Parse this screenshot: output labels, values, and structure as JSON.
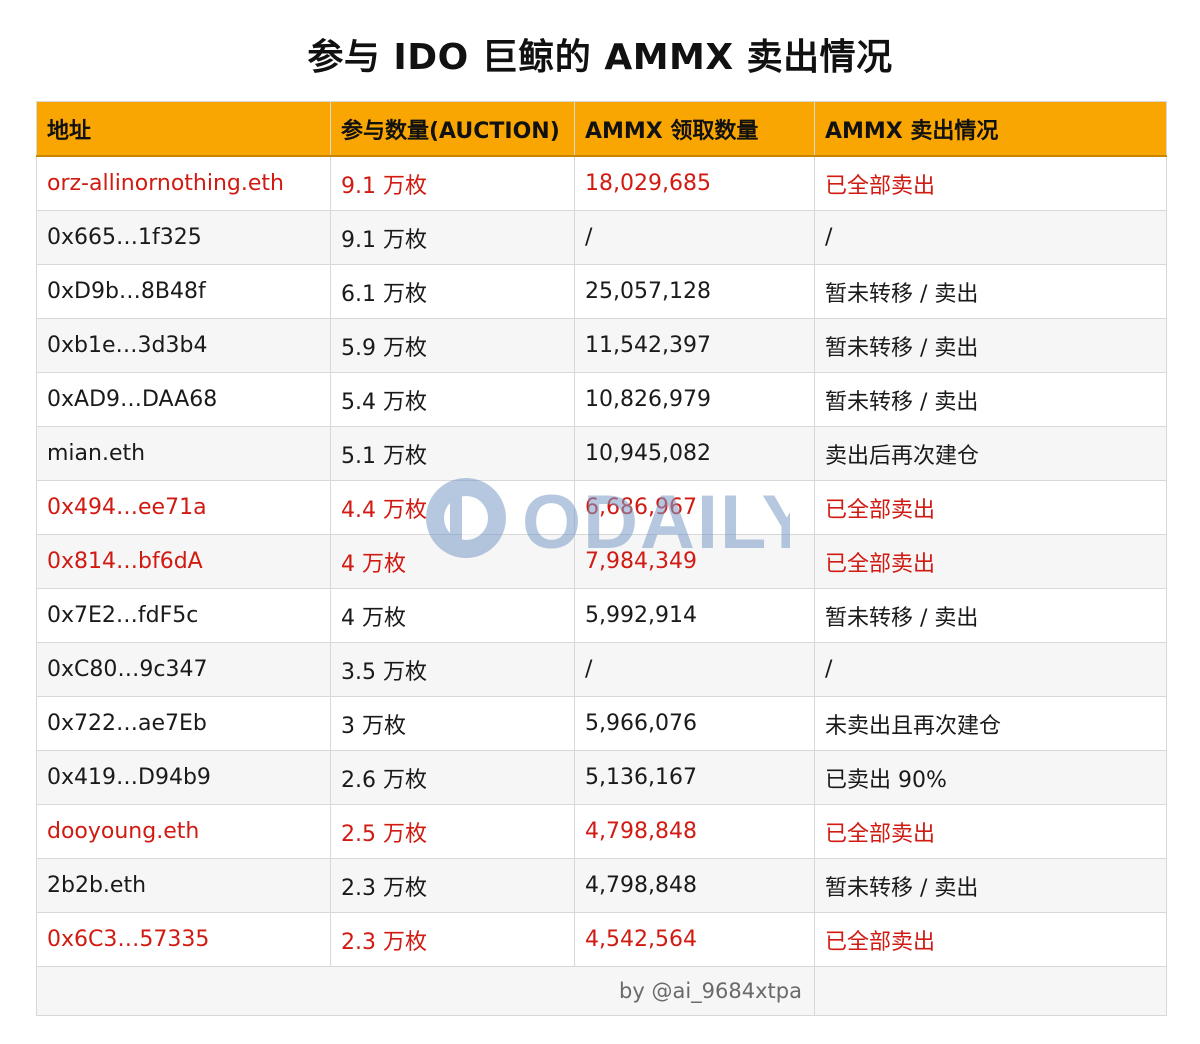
{
  "title": "参与 IDO 巨鲸的 AMMX 卖出情况",
  "headers": [
    "地址",
    "参与数量(AUCTION)",
    "AMMX 领取数量",
    "AMMX 卖出情况"
  ],
  "rows": [
    {
      "address": "orz-allinornothing.eth",
      "amount": "9.1 万枚",
      "claimed": "18,029,685",
      "status": "已全部卖出",
      "highlight": true
    },
    {
      "address": "0x665…1f325",
      "amount": "9.1 万枚",
      "claimed": "/",
      "status": "/",
      "highlight": false
    },
    {
      "address": "0xD9b…8B48f",
      "amount": "6.1 万枚",
      "claimed": "25,057,128",
      "status": "暂未转移 / 卖出",
      "highlight": false
    },
    {
      "address": "0xb1e…3d3b4",
      "amount": "5.9 万枚",
      "claimed": "11,542,397",
      "status": "暂未转移 / 卖出",
      "highlight": false
    },
    {
      "address": "0xAD9…DAA68",
      "amount": "5.4 万枚",
      "claimed": "10,826,979",
      "status": "暂未转移 / 卖出",
      "highlight": false
    },
    {
      "address": "mian.eth",
      "amount": "5.1 万枚",
      "claimed": "10,945,082",
      "status": "卖出后再次建仓",
      "highlight": false
    },
    {
      "address": "0x494…ee71a",
      "amount": "4.4 万枚",
      "claimed": "6,686,967",
      "status": "已全部卖出",
      "highlight": true
    },
    {
      "address": "0x814…bf6dA",
      "amount": "4 万枚",
      "claimed": "7,984,349",
      "status": "已全部卖出",
      "highlight": true
    },
    {
      "address": "0x7E2…fdF5c",
      "amount": "4 万枚",
      "claimed": "5,992,914",
      "status": "暂未转移 / 卖出",
      "highlight": false
    },
    {
      "address": "0xC80…9c347",
      "amount": "3.5 万枚",
      "claimed": "/",
      "status": "/",
      "highlight": false
    },
    {
      "address": "0x722…ae7Eb",
      "amount": "3 万枚",
      "claimed": "5,966,076",
      "status": "未卖出且再次建仓",
      "highlight": false
    },
    {
      "address": "0x419…D94b9",
      "amount": "2.6 万枚",
      "claimed": "5,136,167",
      "status": "已卖出 90%",
      "highlight": false
    },
    {
      "address": "dooyoung.eth",
      "amount": "2.5 万枚",
      "claimed": "4,798,848",
      "status": "已全部卖出",
      "highlight": true
    },
    {
      "address": "2b2b.eth",
      "amount": "2.3 万枚",
      "claimed": "4,798,848",
      "status": "暂未转移 / 卖出",
      "highlight": false
    },
    {
      "address": "0x6C3…57335",
      "amount": "2.3 万枚",
      "claimed": "4,542,564",
      "status": "已全部卖出",
      "highlight": true
    }
  ],
  "footer": "by @ai_9684xtpa",
  "watermark_text": "ODAILY",
  "colors": {
    "header_bg": "#f9a602",
    "highlight_text": "#d11a12",
    "watermark": "#7a9cc8"
  }
}
